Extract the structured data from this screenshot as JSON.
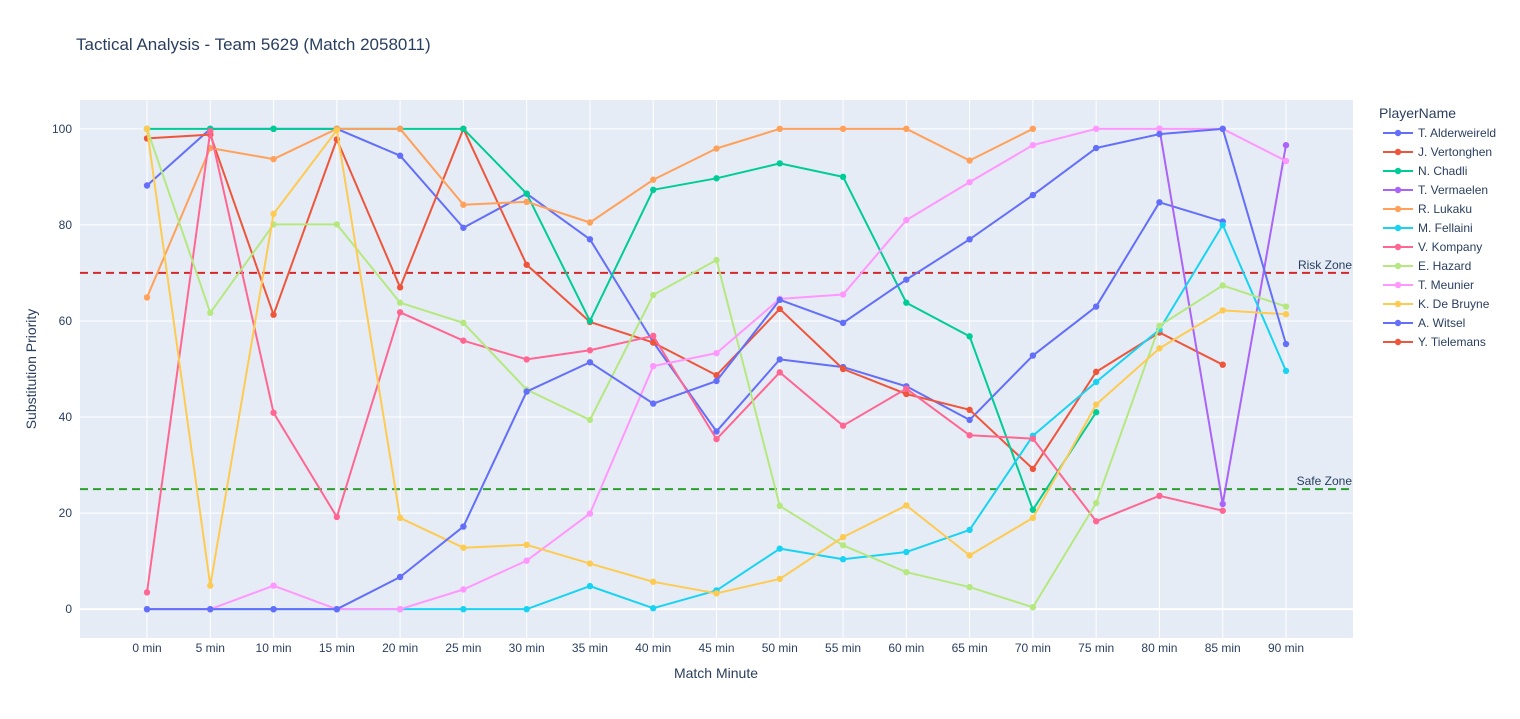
{
  "chart_data": {
    "type": "line",
    "title": "Tactical Analysis - Team 5629 (Match 2058011)",
    "xlabel": "Match Minute",
    "ylabel": "Substitution Priority",
    "legend_title": "PlayerName",
    "legend_position": "right",
    "categories": [
      "0 min",
      "5 min",
      "10 min",
      "15 min",
      "20 min",
      "25 min",
      "30 min",
      "35 min",
      "40 min",
      "45 min",
      "50 min",
      "55 min",
      "60 min",
      "65 min",
      "70 min",
      "75 min",
      "80 min",
      "85 min",
      "90 min"
    ],
    "ylim": [
      -6,
      106
    ],
    "yticks": [
      0,
      20,
      40,
      60,
      80,
      100
    ],
    "grid": true,
    "thresholds": [
      {
        "label": "Risk Zone",
        "y": 70,
        "color": "#d62728"
      },
      {
        "label": "Safe Zone",
        "y": 25,
        "color": "#2ca02c"
      }
    ],
    "series": [
      {
        "name": "T. Alderweireld",
        "color": "#636efa",
        "values": [
          88.2,
          100,
          100,
          100,
          94.4,
          79.4,
          86.5,
          77,
          55.6,
          37,
          52,
          50.4,
          46.4,
          39.4,
          52.8,
          63,
          84.7,
          80.7,
          null
        ]
      },
      {
        "name": "J. Vertonghen",
        "color": "#ef553b",
        "values": [
          98,
          98.8,
          61.3,
          97.8,
          67,
          100,
          71.7,
          59.8,
          55.5,
          48.7,
          62.5,
          50,
          44.8,
          41.5,
          29.2,
          49.4,
          57.6,
          50.9,
          null
        ]
      },
      {
        "name": "N. Chadli",
        "color": "#00cc96",
        "values": [
          100,
          100,
          100,
          100,
          100,
          100,
          86.5,
          60,
          87.3,
          89.7,
          92.8,
          90,
          63.8,
          56.8,
          20.7,
          41,
          null,
          null,
          null
        ]
      },
      {
        "name": "T. Vermaelen",
        "color": "#ab63fa",
        "values": [
          null,
          null,
          null,
          null,
          null,
          null,
          null,
          null,
          null,
          null,
          null,
          null,
          null,
          null,
          null,
          null,
          100,
          21.9,
          96.6
        ]
      },
      {
        "name": "R. Lukaku",
        "color": "#ffa15a",
        "values": [
          64.9,
          96,
          93.7,
          100,
          100,
          84.2,
          84.8,
          80.5,
          89.4,
          95.9,
          100,
          100,
          100,
          93.4,
          100,
          null,
          null,
          null,
          null
        ]
      },
      {
        "name": "M. Fellaini",
        "color": "#19d3f3",
        "values": [
          0,
          0,
          0,
          0,
          0,
          0,
          0,
          4.8,
          0.2,
          3.9,
          12.6,
          10.4,
          11.9,
          16.5,
          36.1,
          47.3,
          58.2,
          80,
          49.6
        ]
      },
      {
        "name": "V. Kompany",
        "color": "#ff6692",
        "values": [
          3.5,
          99.5,
          40.9,
          19.2,
          61.8,
          55.9,
          52,
          53.9,
          56.9,
          35.4,
          49.3,
          38.2,
          45.9,
          36.2,
          35.5,
          18.3,
          23.6,
          20.5,
          null
        ]
      },
      {
        "name": "E. Hazard",
        "color": "#b6e880",
        "values": [
          100,
          61.7,
          80.1,
          80.1,
          63.8,
          59.6,
          45.7,
          39.4,
          65.4,
          72.7,
          21.5,
          13.3,
          7.7,
          4.6,
          0.4,
          22.1,
          59,
          67.4,
          63
        ]
      },
      {
        "name": "T. Meunier",
        "color": "#ff97ff",
        "values": [
          0,
          0,
          4.9,
          0,
          0,
          4.1,
          10.1,
          19.9,
          50.6,
          53.3,
          64.6,
          65.5,
          81,
          88.9,
          96.6,
          100,
          100,
          100,
          93.3
        ]
      },
      {
        "name": "K. De Bruyne",
        "color": "#fecb52",
        "values": [
          100,
          4.9,
          82.3,
          99.7,
          19,
          12.8,
          13.4,
          9.5,
          5.7,
          3.3,
          6.3,
          15,
          21.6,
          11.2,
          19,
          42.6,
          54.3,
          62.2,
          61.4
        ]
      },
      {
        "name": "A. Witsel",
        "color": "#636efa",
        "values": [
          0,
          0,
          0,
          0,
          6.7,
          17.2,
          45.3,
          51.4,
          42.8,
          47.5,
          64.4,
          59.6,
          68.6,
          77,
          86.2,
          96,
          98.9,
          100,
          55.2
        ]
      },
      {
        "name": "Y. Tielemans",
        "color": "#ef553b",
        "values": [
          null,
          null,
          null,
          null,
          null,
          null,
          null,
          null,
          null,
          null,
          null,
          null,
          null,
          null,
          null,
          null,
          null,
          null,
          null
        ]
      }
    ]
  }
}
